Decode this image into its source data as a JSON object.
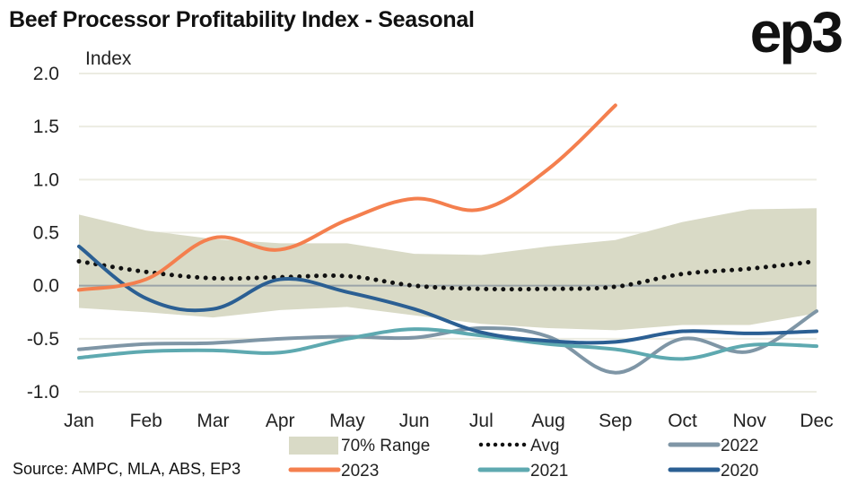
{
  "header": {
    "title": "Beef Processor Profitability Index - Seasonal",
    "logo": "ep3"
  },
  "source": "Source: AMPC, MLA, ABS, EP3",
  "colors": {
    "range": "#d9dac6",
    "avg": "#111111",
    "2023": "#f47f4e",
    "2022": "#7f96a6",
    "2021": "#5ea9b0",
    "2020": "#2b5f93",
    "zero": "#9aa3a8",
    "grid": "#ecece2"
  },
  "chart_data": {
    "type": "line",
    "title": "Beef Processor Profitability Index - Seasonal",
    "ylabel": "Index",
    "xlabel": "",
    "ylim": [
      -1.0,
      2.0
    ],
    "yticks": [
      2.0,
      1.5,
      1.0,
      0.5,
      0.0,
      -0.5,
      -1.0
    ],
    "ytick_labels": [
      "2.0",
      "1.5",
      "1.0",
      "0.5",
      "0.0",
      "-0.5",
      "-1.0"
    ],
    "grid": true,
    "categories": [
      "Jan",
      "Feb",
      "Mar",
      "Apr",
      "May",
      "Jun",
      "Jul",
      "Aug",
      "Sep",
      "Oct",
      "Nov",
      "Dec"
    ],
    "range": {
      "name": "70% Range",
      "upper": [
        0.67,
        0.52,
        0.44,
        0.4,
        0.4,
        0.3,
        0.29,
        0.37,
        0.43,
        0.6,
        0.72,
        0.73
      ],
      "lower": [
        -0.21,
        -0.25,
        -0.3,
        -0.23,
        -0.2,
        -0.28,
        -0.36,
        -0.4,
        -0.42,
        -0.37,
        -0.37,
        -0.26
      ]
    },
    "series": [
      {
        "name": "Avg",
        "style": "dotted",
        "values": [
          0.23,
          0.13,
          0.07,
          0.08,
          0.09,
          0.0,
          -0.03,
          -0.03,
          -0.01,
          0.11,
          0.16,
          0.23
        ]
      },
      {
        "name": "2022",
        "values": [
          -0.6,
          -0.55,
          -0.54,
          -0.5,
          -0.48,
          -0.49,
          -0.4,
          -0.48,
          -0.82,
          -0.5,
          -0.62,
          -0.24
        ]
      },
      {
        "name": "2021",
        "values": [
          -0.68,
          -0.62,
          -0.61,
          -0.63,
          -0.5,
          -0.41,
          -0.47,
          -0.55,
          -0.6,
          -0.69,
          -0.56,
          -0.57
        ]
      },
      {
        "name": "2020",
        "values": [
          0.37,
          -0.12,
          -0.22,
          0.06,
          -0.06,
          -0.22,
          -0.44,
          -0.52,
          -0.53,
          -0.43,
          -0.45,
          -0.43
        ]
      },
      {
        "name": "2023",
        "values": [
          -0.04,
          0.06,
          0.45,
          0.34,
          0.62,
          0.82,
          0.72,
          1.1,
          1.7,
          null,
          null,
          null
        ]
      }
    ],
    "legend": {
      "placement": "bottom",
      "items": [
        "70% Range",
        "Avg",
        "2022",
        "2023",
        "2021",
        "2020"
      ]
    }
  }
}
